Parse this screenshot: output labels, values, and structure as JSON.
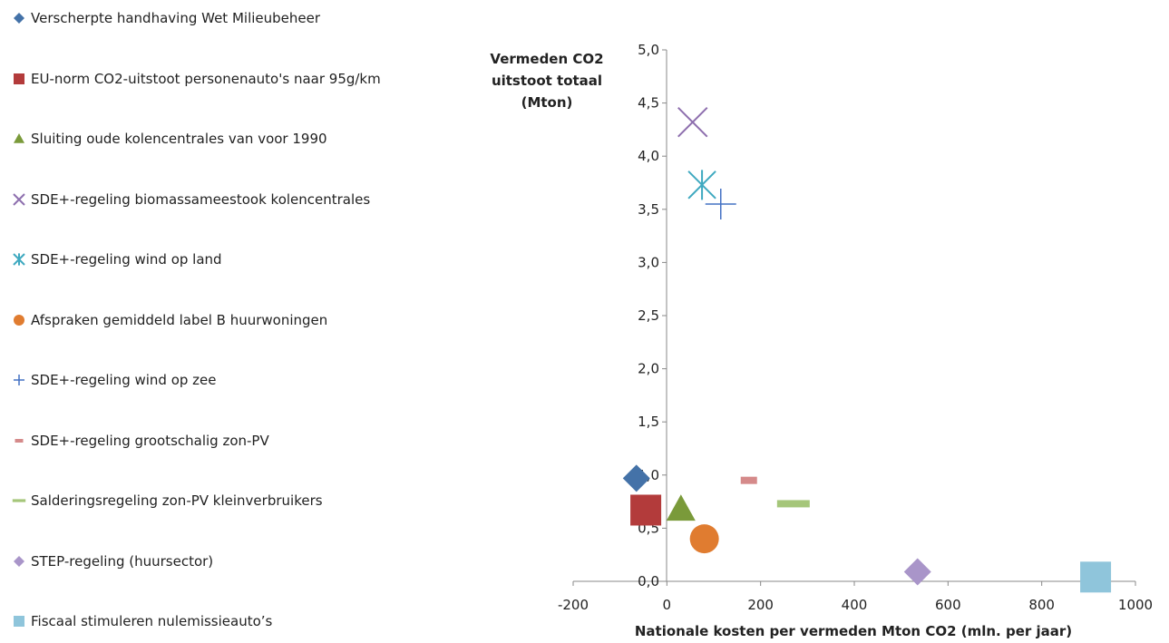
{
  "chart_data": {
    "type": "scatter",
    "title": "",
    "xlabel": "Nationale kosten per vermeden Mton CO2 (mln. per jaar)",
    "ylabel_lines": [
      "Vermeden CO2",
      "uitstoot totaal",
      "(Mton)"
    ],
    "xlim": [
      -200,
      1000
    ],
    "ylim": [
      0,
      5
    ],
    "xticks": [
      "-200",
      "0",
      "200",
      "400",
      "600",
      "800",
      "1000"
    ],
    "yticks": [
      "0,0",
      "0,5",
      "1,0",
      "1,5",
      "2,0",
      "2,5",
      "3,0",
      "3,5",
      "4,0",
      "4,5",
      "5,0"
    ],
    "legend_position": "left",
    "grid": false,
    "series": [
      {
        "name": "Verscherpte handhaving Wet Milieubeheer",
        "marker": "diamond",
        "color": "#4472a8",
        "x": -65,
        "y": 0.97
      },
      {
        "name": "EU-norm CO2-uitstoot  personenauto's naar 95g/km",
        "marker": "square",
        "color": "#b33b3b",
        "x": -45,
        "y": 0.67
      },
      {
        "name": "Sluiting oude kolencentrales van voor 1990",
        "marker": "triangle",
        "color": "#7a9a3a",
        "x": 30,
        "y": 0.68
      },
      {
        "name": "SDE+-regeling biomassameestook  kolencentrales",
        "marker": "x",
        "color": "#8e6fae",
        "x": 55,
        "y": 4.32
      },
      {
        "name": "SDE+-regeling wind op land",
        "marker": "star",
        "color": "#3fa9c0",
        "x": 75,
        "y": 3.73
      },
      {
        "name": "Afspraken gemiddeld label B huurwoningen",
        "marker": "circle",
        "color": "#e07c30",
        "x": 80,
        "y": 0.4
      },
      {
        "name": "SDE+-regeling wind op zee",
        "marker": "plus",
        "color": "#4472c4",
        "x": 115,
        "y": 3.55
      },
      {
        "name": "SDE+-regeling grootschalig zon-PV",
        "marker": "dash-small",
        "color": "#d58a8a",
        "x": 175,
        "y": 0.95
      },
      {
        "name": "Salderingsregeling zon-PV kleinverbruikers",
        "marker": "dash-large",
        "color": "#a5c67a",
        "x": 270,
        "y": 0.73
      },
      {
        "name": "STEP-regeling (huursector)",
        "marker": "diamond",
        "color": "#a995c9",
        "x": 535,
        "y": 0.09
      },
      {
        "name": "Fiscaal stimuleren nulemissieauto’s",
        "marker": "square",
        "color": "#8fc5db",
        "x": 915,
        "y": 0.04
      }
    ]
  }
}
